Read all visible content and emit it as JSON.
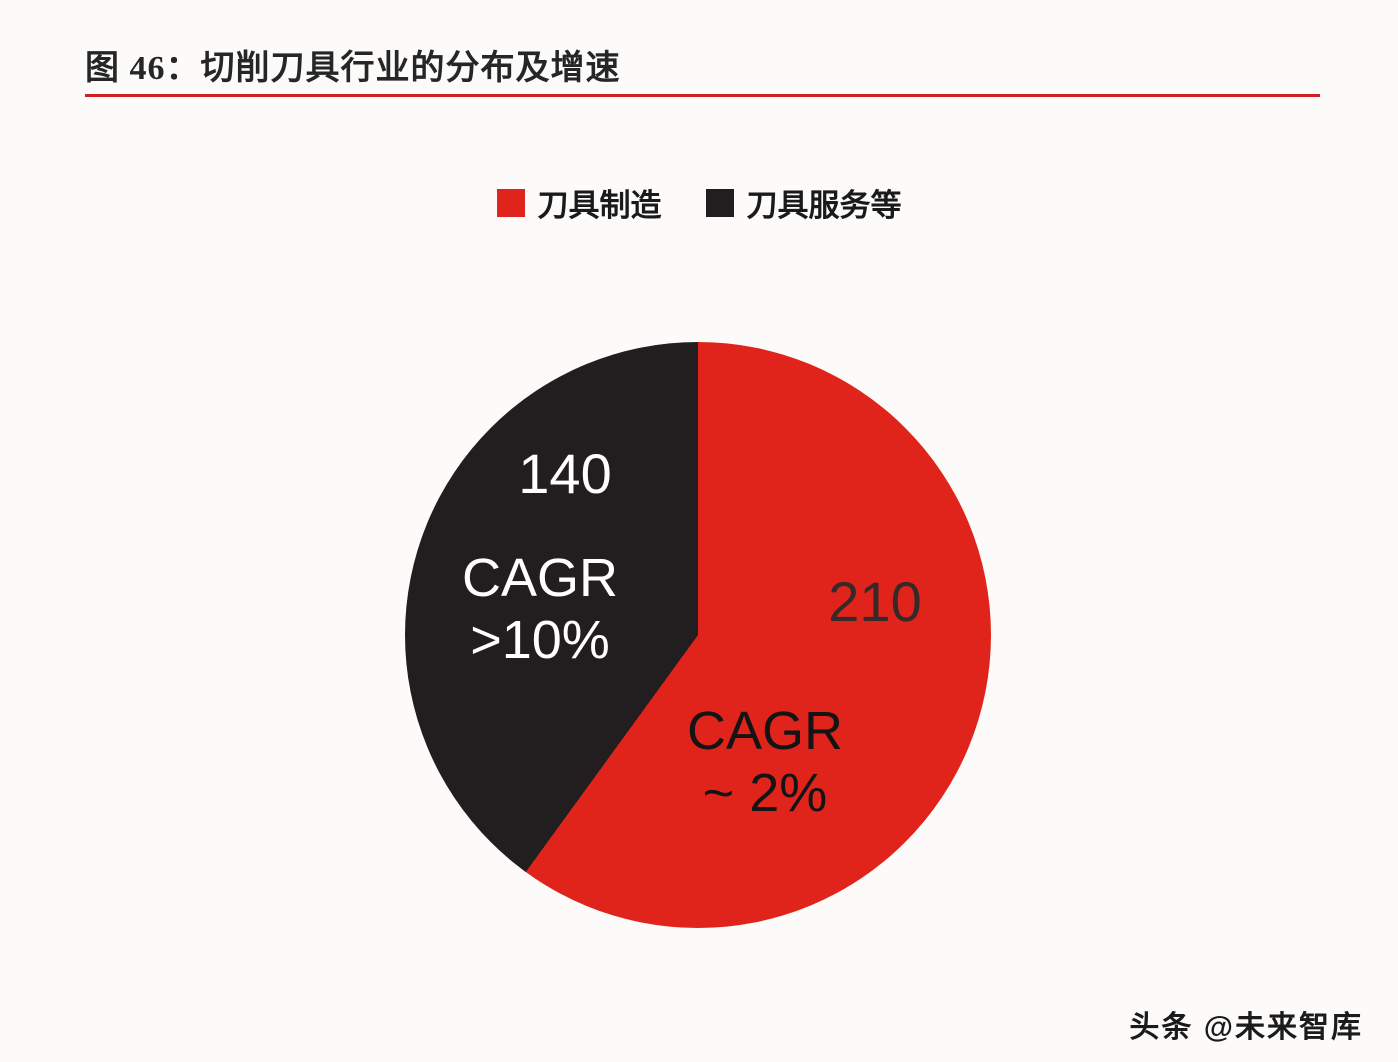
{
  "page": {
    "title": "图 46：切削刀具行业的分布及增速",
    "watermark": "头条 @未来智库"
  },
  "chart_data": {
    "type": "pie",
    "title": "图 46：切削刀具行业的分布及增速",
    "legend_position": "top",
    "start_angle_deg": 0,
    "total": 350,
    "series": [
      {
        "name": "刀具制造",
        "value": 210,
        "label": "210",
        "annotation_line1": "CAGR",
        "annotation_line2": "~ 2%",
        "color": "#e0241c"
      },
      {
        "name": "刀具服务等",
        "value": 140,
        "label": "140",
        "annotation_line1": "CAGR",
        "annotation_line2": ">10%",
        "color": "#221e1f"
      }
    ],
    "colors": {
      "accent_rule": "#d12026",
      "slice_red": "#e0241c",
      "slice_black": "#221e1f"
    }
  }
}
